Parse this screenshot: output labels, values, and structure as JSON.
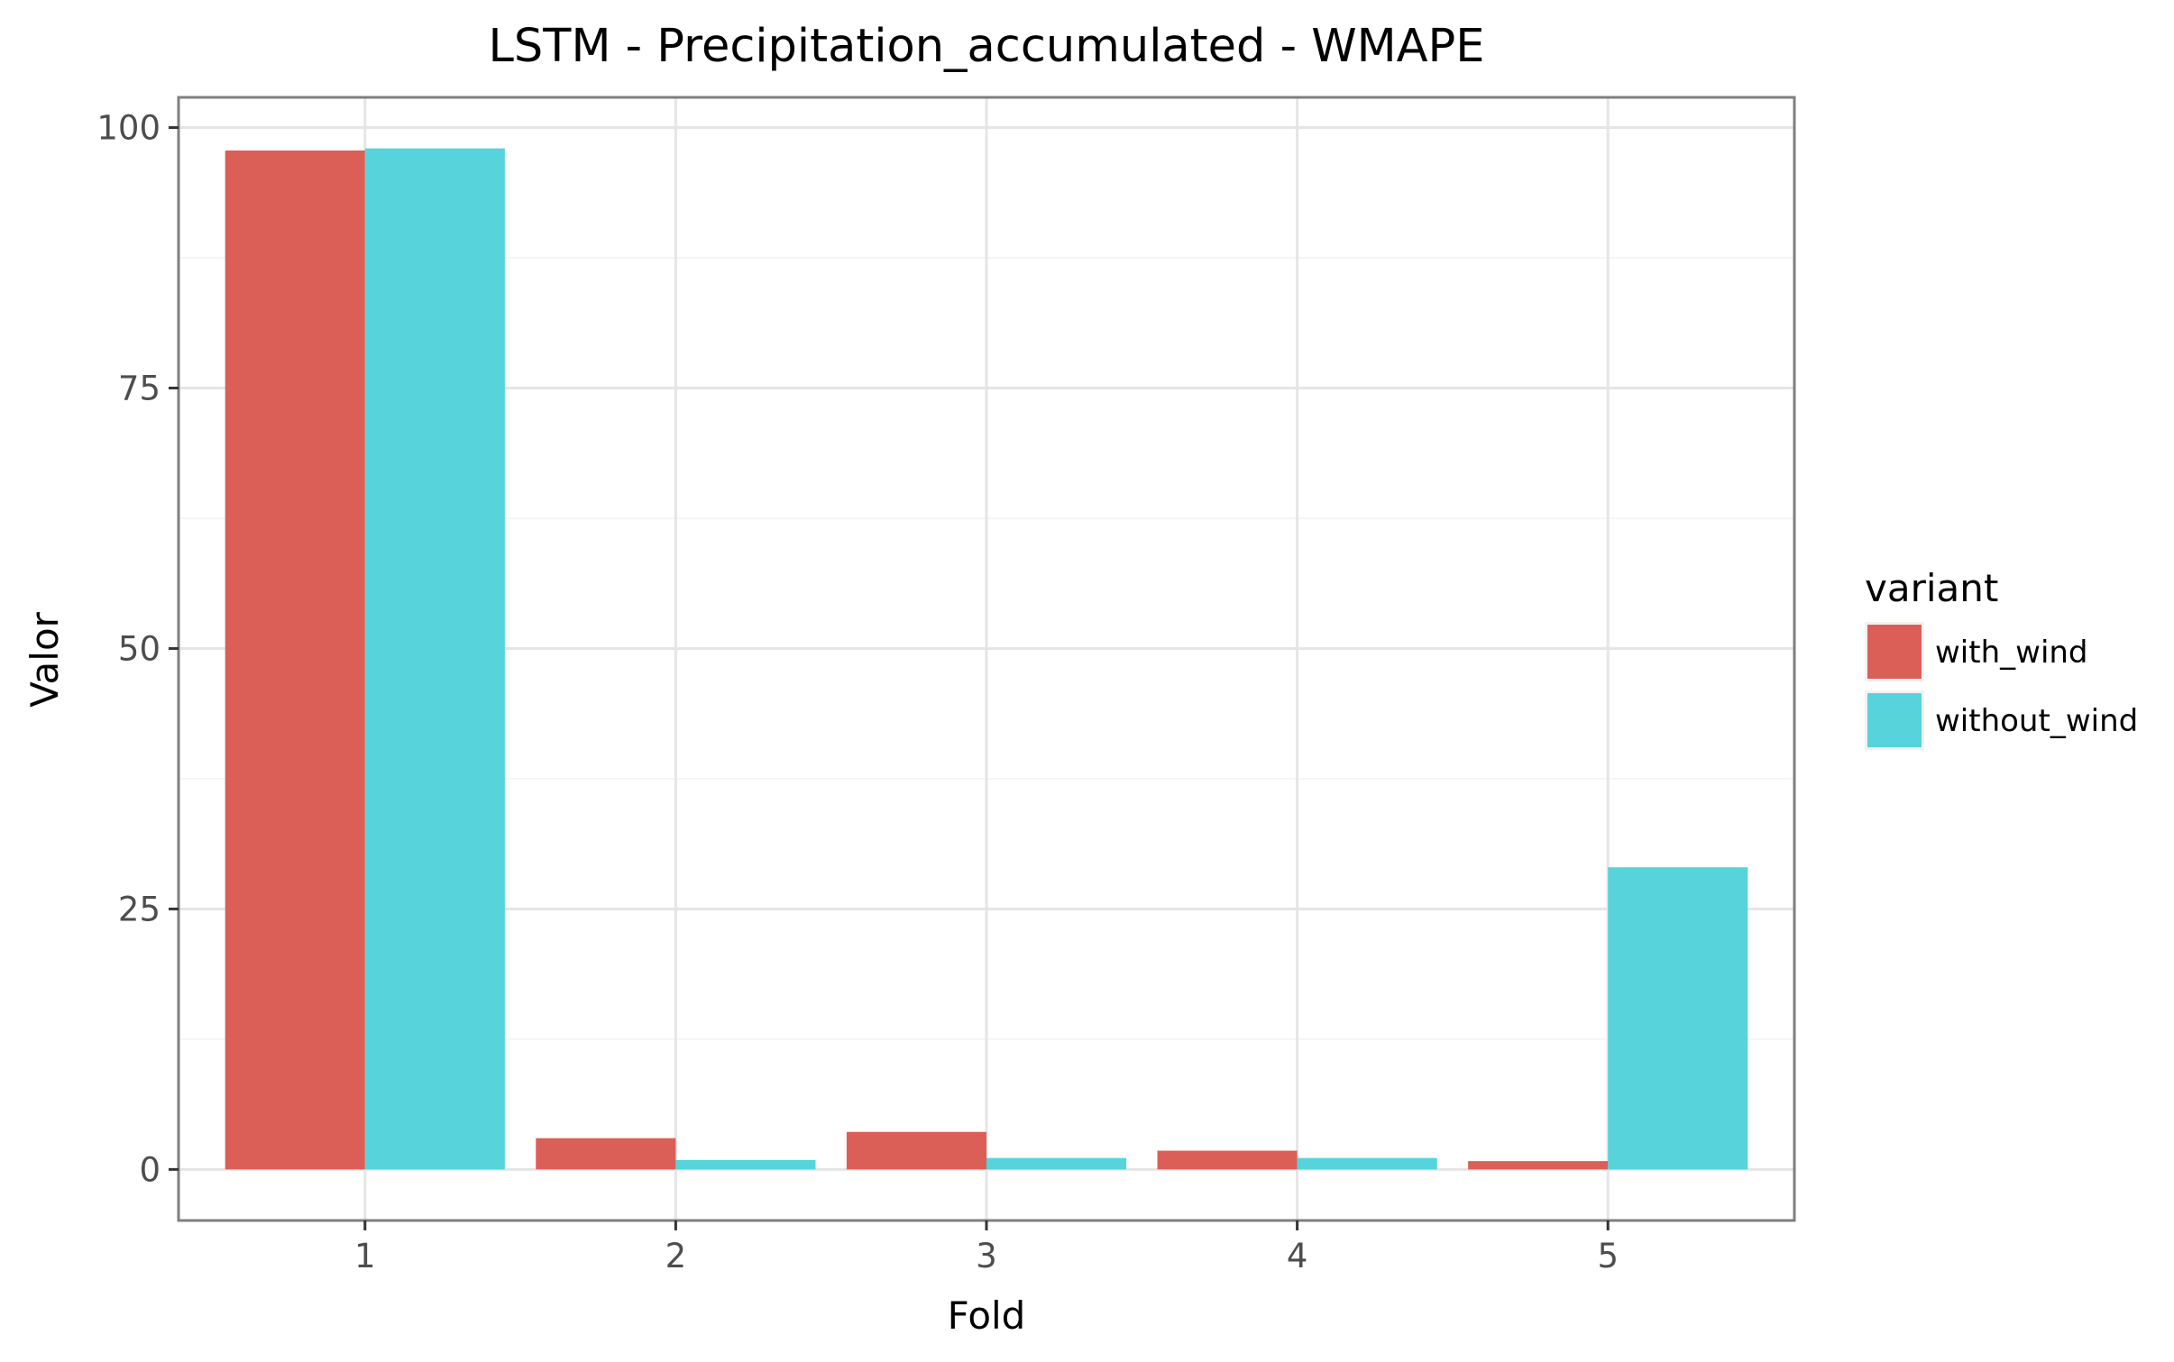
{
  "chart_data": {
    "type": "bar",
    "title": "LSTM - Precipitation_accumulated - WMAPE",
    "xlabel": "Fold",
    "ylabel": "Valor",
    "categories": [
      "1",
      "2",
      "3",
      "4",
      "5"
    ],
    "series": [
      {
        "name": "with_wind",
        "color": "#DB5F57",
        "values": [
          97.8,
          3.0,
          3.6,
          1.8,
          0.8
        ]
      },
      {
        "name": "without_wind",
        "color": "#57D3DB",
        "values": [
          98.0,
          0.9,
          1.1,
          1.1,
          29.0
        ]
      }
    ],
    "ylim": [
      -4.9,
      102.9
    ],
    "yticks": [
      0,
      25,
      50,
      75,
      100
    ],
    "yticklabels": [
      "0",
      "25",
      "50",
      "75",
      "100"
    ],
    "legend_title": "variant",
    "legend_position": "right",
    "grid": true
  }
}
